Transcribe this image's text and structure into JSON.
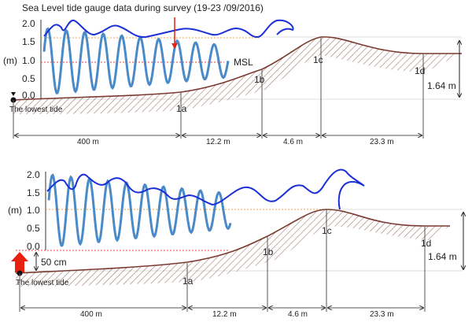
{
  "title": "Sea Level tide gauge data during survey (19-23 /09/2016)",
  "y_unit": "(m)",
  "y_ticks": [
    "2.0",
    "1.5",
    "1.0",
    "0.5",
    "0.0"
  ],
  "msl_label": "MSL",
  "lowest_tide_label": "The lowest tide",
  "stations": [
    "1a",
    "1b",
    "1c",
    "1d"
  ],
  "distances": [
    "400 m",
    "12.2 m",
    "4.6 m",
    "23.3 m"
  ],
  "height_label": "1.64 m",
  "offset_label": "50 cm",
  "colors": {
    "envelope": "#1a2fd6",
    "tide": "#4a8ac8",
    "ground": "#7a3a30",
    "msl": "#e84040",
    "high": "#f0a040",
    "arrow": "#e82010"
  }
}
